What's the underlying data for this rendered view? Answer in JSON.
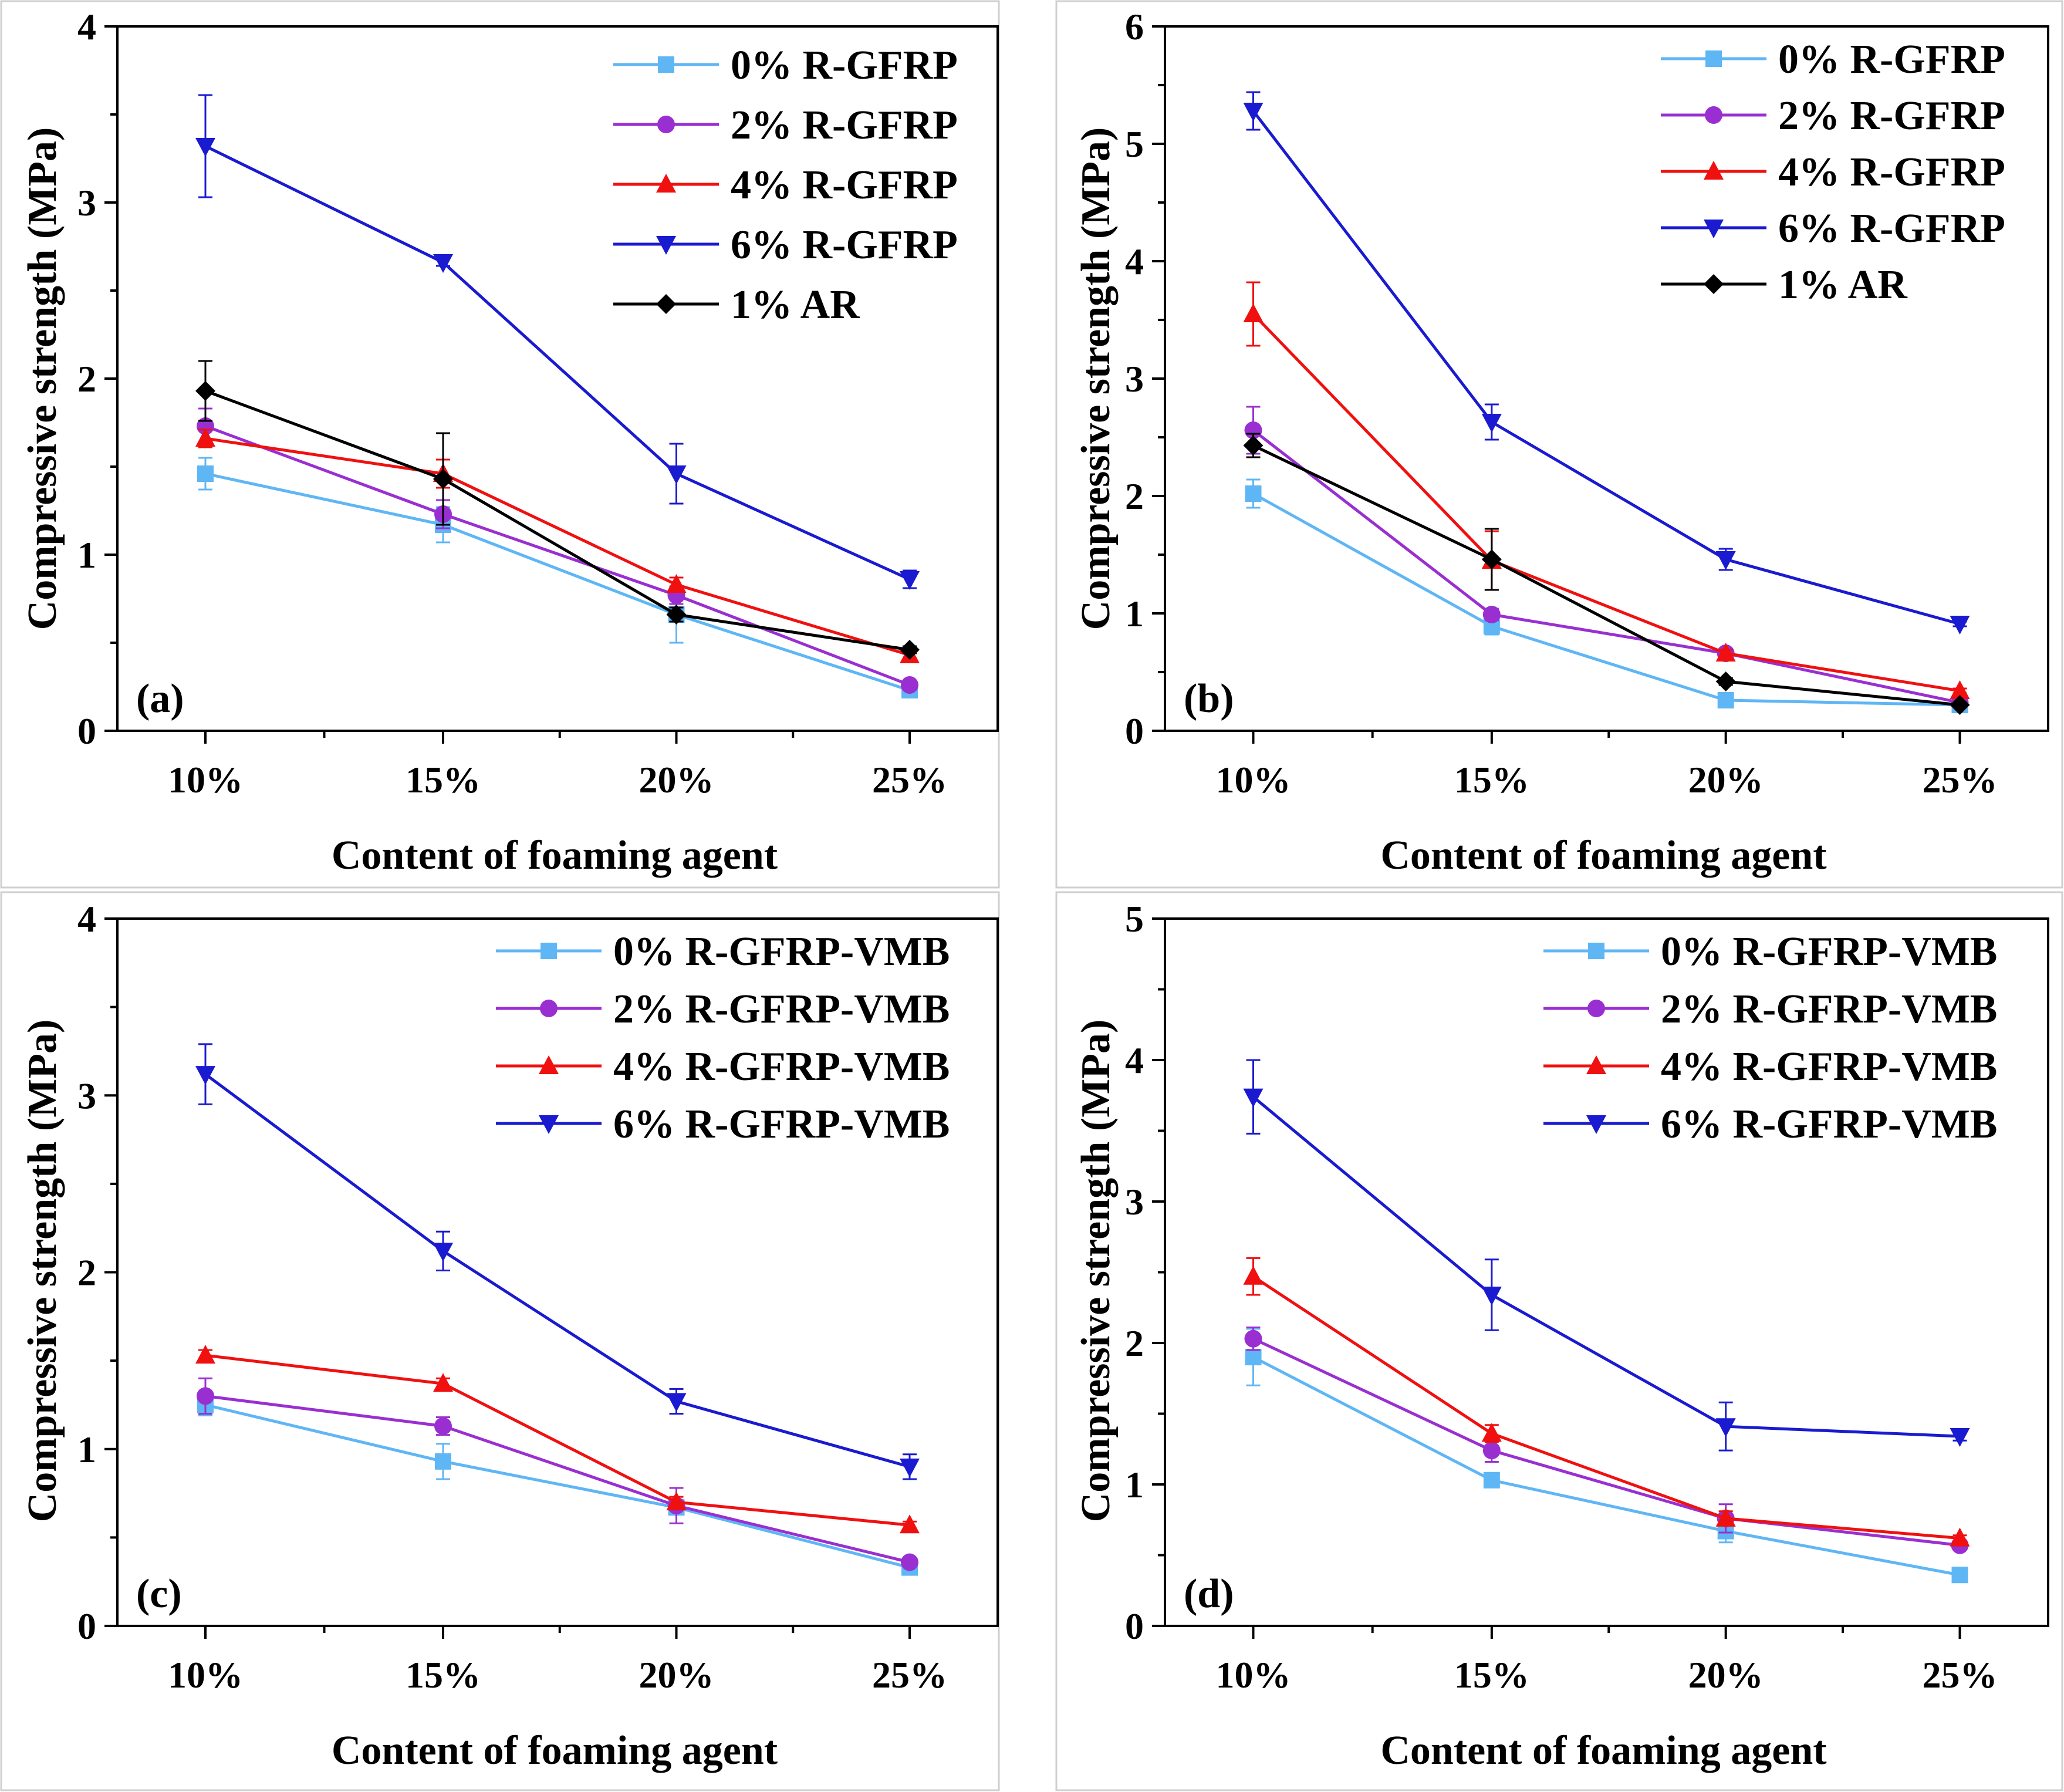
{
  "colors": {
    "0%": "#5fb6f5",
    "2%": "#9a2fd1",
    "4%": "#f01010",
    "6%": "#1a1ad0",
    "AR": "#000000"
  },
  "chart_data": [
    {
      "type": "line",
      "panel_label": "(a)",
      "xlabel": "Content of foaming agent",
      "ylabel": "Compressive strength (MPa)",
      "categories": [
        "10%",
        "15%",
        "20%",
        "25%"
      ],
      "ylim": [
        0,
        4
      ],
      "yticks": [
        "0",
        "1",
        "2",
        "3",
        "4"
      ],
      "legend_position": "top-right",
      "series": [
        {
          "name": "0% R-GFRP",
          "color_key": "0%",
          "marker": "square",
          "values": [
            1.46,
            1.17,
            0.66,
            0.23
          ],
          "errors": [
            0.09,
            0.1,
            0.16,
            0.03
          ]
        },
        {
          "name": "2% R-GFRP",
          "color_key": "2%",
          "marker": "circle",
          "values": [
            1.73,
            1.23,
            0.77,
            0.26
          ],
          "errors": [
            0.1,
            0.08,
            0.05,
            0.02
          ]
        },
        {
          "name": "4% R-GFRP",
          "color_key": "4%",
          "marker": "triangle-up",
          "values": [
            1.66,
            1.46,
            0.83,
            0.43
          ],
          "errors": [
            0.05,
            0.08,
            0.04,
            0.02
          ]
        },
        {
          "name": "6% R-GFRP",
          "color_key": "6%",
          "marker": "triangle-down",
          "values": [
            3.32,
            2.66,
            1.46,
            0.86
          ],
          "errors": [
            0.29,
            0.02,
            0.17,
            0.05
          ]
        },
        {
          "name": "1% AR",
          "color_key": "AR",
          "marker": "diamond",
          "values": [
            1.93,
            1.43,
            0.66,
            0.46
          ],
          "errors": [
            0.17,
            0.26,
            0.04,
            0.02
          ]
        }
      ]
    },
    {
      "type": "line",
      "panel_label": "(b)",
      "xlabel": "Content of foaming agent",
      "ylabel": "Compressive strength (MPa)",
      "categories": [
        "10%",
        "15%",
        "20%",
        "25%"
      ],
      "ylim": [
        0,
        6
      ],
      "yticks": [
        "0",
        "1",
        "2",
        "3",
        "4",
        "5",
        "6"
      ],
      "legend_position": "top-right",
      "series": [
        {
          "name": "0% R-GFRP",
          "color_key": "0%",
          "marker": "square",
          "values": [
            2.02,
            0.89,
            0.26,
            0.22
          ],
          "errors": [
            0.12,
            0.07,
            0.03,
            0.02
          ]
        },
        {
          "name": "2% R-GFRP",
          "color_key": "2%",
          "marker": "circle",
          "values": [
            2.56,
            0.99,
            0.66,
            0.24
          ],
          "errors": [
            0.2,
            0.05,
            0.03,
            0.02
          ]
        },
        {
          "name": "4% R-GFRP",
          "color_key": "4%",
          "marker": "triangle-up",
          "values": [
            3.55,
            1.45,
            0.66,
            0.34
          ],
          "errors": [
            0.27,
            0.25,
            0.03,
            0.02
          ]
        },
        {
          "name": "6% R-GFRP",
          "color_key": "6%",
          "marker": "triangle-down",
          "values": [
            5.28,
            2.63,
            1.46,
            0.91
          ],
          "errors": [
            0.16,
            0.15,
            0.09,
            0.02
          ]
        },
        {
          "name": "1% AR",
          "color_key": "AR",
          "marker": "diamond",
          "values": [
            2.43,
            1.46,
            0.42,
            0.22
          ],
          "errors": [
            0.1,
            0.26,
            0.03,
            0.02
          ]
        }
      ]
    },
    {
      "type": "line",
      "panel_label": "(c)",
      "xlabel": "Content of foaming agent",
      "ylabel": "Compressive strength (MPa)",
      "categories": [
        "10%",
        "15%",
        "20%",
        "25%"
      ],
      "ylim": [
        0,
        4
      ],
      "yticks": [
        "0",
        "1",
        "2",
        "3",
        "4"
      ],
      "legend_position": "top-right",
      "series": [
        {
          "name": "0% R-GFRP-VMB",
          "color_key": "0%",
          "marker": "square",
          "values": [
            1.25,
            0.93,
            0.67,
            0.33
          ],
          "errors": [
            0.06,
            0.1,
            0.04,
            0.02
          ]
        },
        {
          "name": "2% R-GFRP-VMB",
          "color_key": "2%",
          "marker": "circle",
          "values": [
            1.3,
            1.13,
            0.68,
            0.36
          ],
          "errors": [
            0.1,
            0.05,
            0.1,
            0.02
          ]
        },
        {
          "name": "4% R-GFRP-VMB",
          "color_key": "4%",
          "marker": "triangle-up",
          "values": [
            1.53,
            1.37,
            0.7,
            0.57
          ],
          "errors": [
            0.03,
            0.03,
            0.03,
            0.02
          ]
        },
        {
          "name": "6% R-GFRP-VMB",
          "color_key": "6%",
          "marker": "triangle-down",
          "values": [
            3.12,
            2.12,
            1.27,
            0.9
          ],
          "errors": [
            0.17,
            0.11,
            0.07,
            0.07
          ]
        }
      ]
    },
    {
      "type": "line",
      "panel_label": "(d)",
      "xlabel": "Content of foaming agent",
      "ylabel": "Compressive strength (MPa)",
      "categories": [
        "10%",
        "15%",
        "20%",
        "25%"
      ],
      "ylim": [
        0,
        5
      ],
      "yticks": [
        "0",
        "1",
        "2",
        "3",
        "4",
        "5"
      ],
      "legend_position": "top-right",
      "series": [
        {
          "name": "0% R-GFRP-VMB",
          "color_key": "0%",
          "marker": "square",
          "values": [
            1.9,
            1.03,
            0.67,
            0.36
          ],
          "errors": [
            0.2,
            0.05,
            0.08,
            0.02
          ]
        },
        {
          "name": "2% R-GFRP-VMB",
          "color_key": "2%",
          "marker": "circle",
          "values": [
            2.03,
            1.24,
            0.76,
            0.57
          ],
          "errors": [
            0.08,
            0.08,
            0.1,
            0.03
          ]
        },
        {
          "name": "4% R-GFRP-VMB",
          "color_key": "4%",
          "marker": "triangle-up",
          "values": [
            2.47,
            1.36,
            0.76,
            0.62
          ],
          "errors": [
            0.13,
            0.06,
            0.05,
            0.02
          ]
        },
        {
          "name": "6% R-GFRP-VMB",
          "color_key": "6%",
          "marker": "triangle-down",
          "values": [
            3.74,
            2.34,
            1.41,
            1.34
          ],
          "errors": [
            0.26,
            0.25,
            0.17,
            0.03
          ]
        }
      ]
    }
  ]
}
